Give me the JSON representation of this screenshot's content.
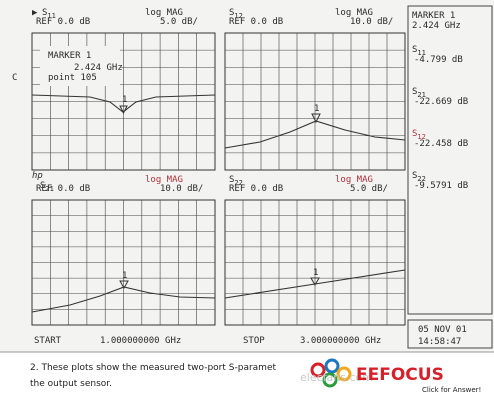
{
  "panels": [
    {
      "param": {
        "s": "S",
        "sub": "11"
      },
      "prefix": "▶",
      "format": "log MAG",
      "ref": "REF 0.0 dB",
      "scale": "5.0 dB/"
    },
    {
      "param": {
        "s": "S",
        "sub": "12"
      },
      "format": "log MAG",
      "ref": "REF 0.0 dB",
      "scale": "10.0 dB/"
    },
    {
      "param": {
        "s": "S",
        "sub": "21"
      },
      "prefix": "hp",
      "format": "log MAG",
      "ref": "REF 0.0 dB",
      "scale": "10.0 dB/"
    },
    {
      "param": {
        "s": "S",
        "sub": "22"
      },
      "format": "log MAG",
      "ref": "REF 0.0 dB",
      "scale": "5.0 dB/"
    }
  ],
  "marker_box": {
    "title": "MARKER 1",
    "freq": "2.424 GHz",
    "channel": "C",
    "point": "point 105"
  },
  "sweep": {
    "start_label": "START",
    "start": "1.000000000 GHz",
    "stop_label": "STOP",
    "stop": "3.000000000 GHz"
  },
  "sidebar": {
    "title": "MARKER 1",
    "freq": "2.424 GHz",
    "readings": [
      {
        "param": {
          "s": "S",
          "sub": "11"
        },
        "value": "-4.799 dB"
      },
      {
        "param": {
          "s": "S",
          "sub": "21"
        },
        "value": "-22.669 dB"
      },
      {
        "param": {
          "s": "S",
          "sub": "12"
        },
        "value": "-22.458 dB"
      },
      {
        "param": {
          "s": "S",
          "sub": "22"
        },
        "value": "-9.5791 dB"
      }
    ],
    "date": "05 NOV 01",
    "time": "14:58:47"
  },
  "caption": [
    "2. These plots show the measured two-port S-paramet",
    "the output sensor."
  ],
  "watermark": "elecfans.com",
  "logo": {
    "name": "EEFOCUS",
    "tagline": "Click for Answer!"
  }
}
